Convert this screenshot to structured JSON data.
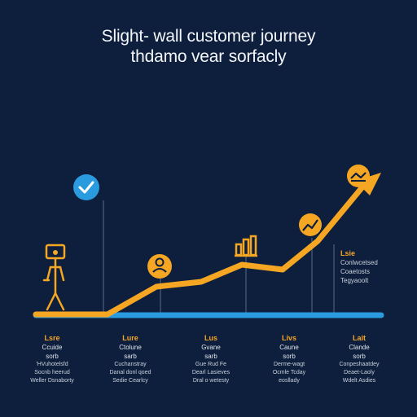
{
  "title": {
    "line1": "Slight- wall customer journey",
    "line2": "thdamo vear sorfacly"
  },
  "colors": {
    "background": "#0d1f3c",
    "path": "#f5a623",
    "baseline": "#2b9be0",
    "check": "#2b9be0"
  },
  "icons": [
    "check-icon",
    "person-figure-icon",
    "user-avatar-icon",
    "bar-chart-icon",
    "growth-chart-icon",
    "handshake-icon"
  ],
  "stages": [
    {
      "head": "Lsre",
      "sub": "Ccuide",
      "sub2": "sorb",
      "desc1": "'HVuhotelsfd",
      "desc2": "Socnb heerud",
      "desc3": "Weller Dsnaborty"
    },
    {
      "head": "Lure",
      "sub": "Ctolune",
      "sub2": "sarb",
      "desc1": "Cuchanstray",
      "desc2": "Danal donl qoed",
      "desc3": "Sedie Cearlcy"
    },
    {
      "head": "Lus",
      "sub": "Gvane",
      "sub2": "sarb",
      "desc1": "Gue Rud Fe",
      "desc2": "Dearl Lasieves",
      "desc3": "Dral o wetesty"
    },
    {
      "head": "Livs",
      "sub": "Caune",
      "sub2": "sorb",
      "desc1": "Derme-wagt",
      "desc2": "Ocmle Tcday",
      "desc3": "eosllady"
    },
    {
      "head": "Lait",
      "sub": "Clande",
      "sub2": "sorb",
      "desc1": "Conpeshaatdey",
      "desc2": "Deaet-Laoly",
      "desc3": "Wdelt Asdies"
    }
  ],
  "side": {
    "head": "Lsie",
    "line1": "Conlwcetsed",
    "line2": "Coaetosts",
    "line3": "Tegyaoolt"
  }
}
